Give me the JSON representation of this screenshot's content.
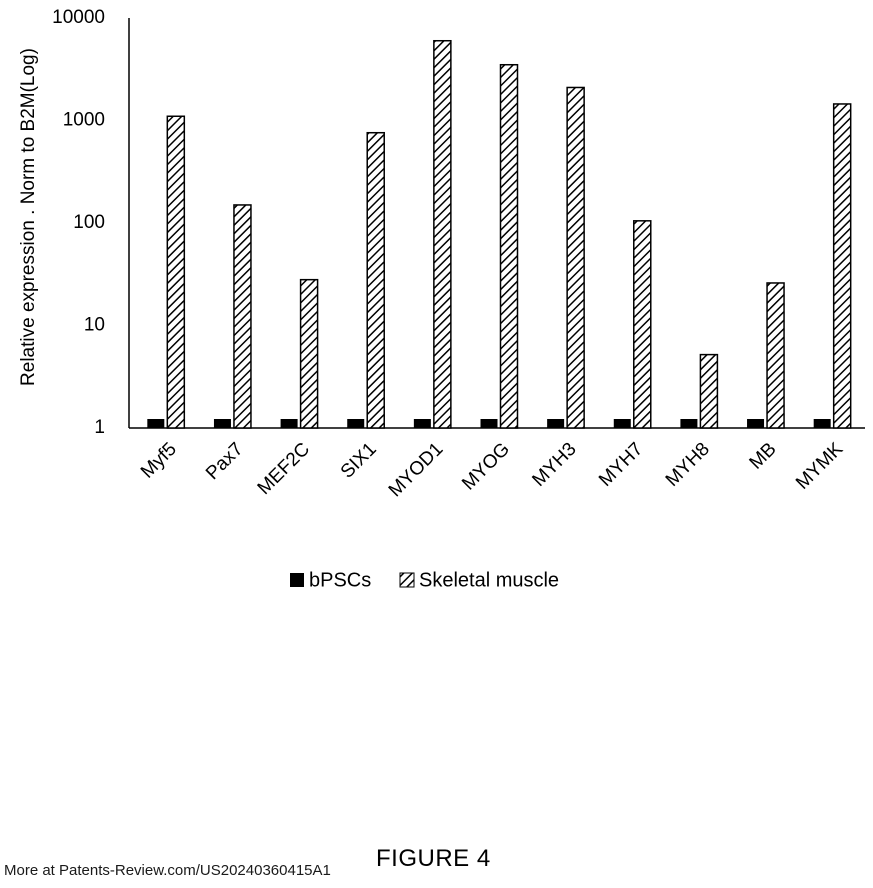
{
  "figure_label": "FIGURE 4",
  "watermark": "More at Patents-Review.com/US20240360415A1",
  "colors": {
    "bpscs": "#000000",
    "skeletal_muscle_hatch": "#000000",
    "axis": "#000000"
  },
  "chart_data": {
    "type": "bar",
    "title": "",
    "xlabel": "",
    "ylabel": "Relative expression . Norm to B2M(Log)",
    "y_scale": "log",
    "ylim": [
      1,
      10000
    ],
    "y_ticks": [
      "1",
      "10",
      "100",
      "1000",
      "10000"
    ],
    "grid": false,
    "legend_position": "bottom",
    "categories": [
      "Myf5",
      "Pax7",
      "MEF2C",
      "SIX1",
      "MYOD1",
      "MYOG",
      "MYH3",
      "MYH7",
      "MYH8",
      "MB",
      "MYMK"
    ],
    "series": [
      {
        "name": "bPSCs",
        "pattern": "solid",
        "values": [
          1,
          1,
          1,
          1,
          1,
          1,
          1,
          1,
          1,
          1,
          1
        ]
      },
      {
        "name": "Skeletal muscle",
        "pattern": "diagonal-hatch",
        "values": [
          1100,
          150,
          28,
          760,
          6000,
          3500,
          2100,
          105,
          5.2,
          26,
          1450
        ]
      }
    ]
  }
}
